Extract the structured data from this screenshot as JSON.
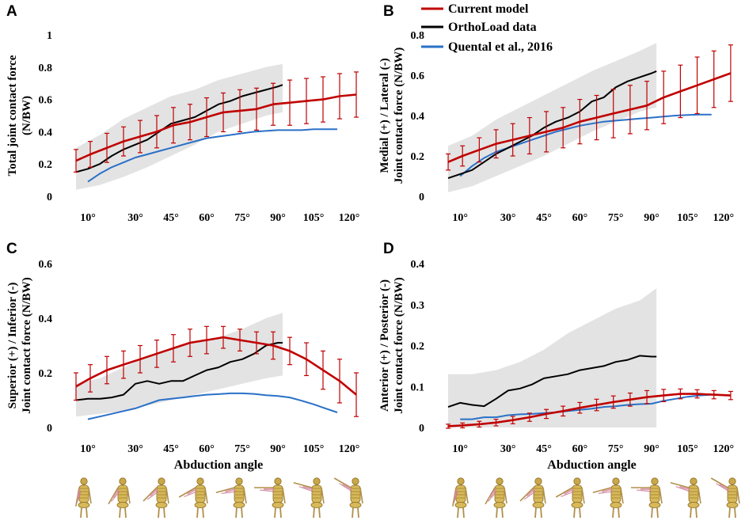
{
  "colors": {
    "current": "#c00000",
    "ortho": "#000000",
    "quental": "#2a70c8",
    "band": "#e3e3e3"
  },
  "legend": {
    "items": [
      {
        "key": "current",
        "label": "Current model"
      },
      {
        "key": "ortho",
        "label": "OrthoLoad data"
      },
      {
        "key": "quental",
        "label": "Quental et al., 2016"
      }
    ]
  },
  "figure_icon": "shoulder-abduction-skeleton-icon",
  "chart_data": [
    {
      "panel": "A",
      "type": "line",
      "ylabel_lines": [
        "Total joint contact force",
        "(N/BW)"
      ],
      "xlabel": "",
      "ylim": [
        0,
        1
      ],
      "yticks": [
        0,
        0.2,
        0.4,
        0.6,
        0.8,
        1
      ],
      "ytick_labels": [
        "0",
        "0.2",
        "0.4",
        "0.6",
        "0.8",
        "1"
      ],
      "xlim": [
        3,
        127
      ],
      "xticks": [
        10,
        30,
        45,
        60,
        75,
        90,
        105,
        120
      ],
      "xtick_labels": [
        "10°",
        "30°",
        "45°",
        "60°",
        "75°",
        "90°",
        "105°",
        "120°"
      ],
      "band": {
        "x": [
          5,
          15,
          25,
          35,
          45,
          55,
          65,
          75,
          85,
          92
        ],
        "lower": [
          0.04,
          0.07,
          0.12,
          0.18,
          0.25,
          0.32,
          0.4,
          0.45,
          0.5,
          0.52
        ],
        "upper": [
          0.3,
          0.38,
          0.48,
          0.55,
          0.62,
          0.66,
          0.72,
          0.76,
          0.8,
          0.82
        ]
      },
      "series": [
        {
          "name": "Current model",
          "key": "current",
          "x": [
            5,
            11,
            18,
            25,
            32,
            39,
            46,
            53,
            60,
            67,
            74,
            81,
            88,
            95,
            102,
            109,
            116,
            123
          ],
          "y": [
            0.22,
            0.26,
            0.3,
            0.34,
            0.37,
            0.4,
            0.44,
            0.46,
            0.49,
            0.52,
            0.53,
            0.54,
            0.57,
            0.58,
            0.59,
            0.6,
            0.62,
            0.63
          ],
          "err": [
            0.07,
            0.08,
            0.09,
            0.09,
            0.1,
            0.1,
            0.11,
            0.11,
            0.12,
            0.12,
            0.13,
            0.13,
            0.13,
            0.14,
            0.14,
            0.14,
            0.14,
            0.14
          ]
        },
        {
          "name": "OrthoLoad data",
          "key": "ortho",
          "x": [
            5,
            10,
            15,
            20,
            25,
            30,
            35,
            40,
            45,
            50,
            55,
            60,
            65,
            70,
            75,
            80,
            85,
            90,
            92
          ],
          "y": [
            0.15,
            0.17,
            0.2,
            0.25,
            0.29,
            0.32,
            0.35,
            0.4,
            0.45,
            0.47,
            0.49,
            0.53,
            0.57,
            0.59,
            0.62,
            0.64,
            0.66,
            0.68,
            0.69
          ]
        },
        {
          "name": "Quental et al., 2016",
          "key": "quental",
          "x": [
            10,
            15,
            20,
            25,
            30,
            35,
            40,
            45,
            50,
            55,
            60,
            65,
            70,
            75,
            80,
            85,
            90,
            95,
            100,
            105,
            110,
            115
          ],
          "y": [
            0.09,
            0.14,
            0.18,
            0.21,
            0.24,
            0.26,
            0.28,
            0.3,
            0.32,
            0.34,
            0.36,
            0.37,
            0.38,
            0.39,
            0.4,
            0.405,
            0.41,
            0.41,
            0.41,
            0.415,
            0.415,
            0.415
          ]
        }
      ]
    },
    {
      "panel": "B",
      "type": "line",
      "ylabel_lines": [
        "Medial (+) / Lateral (-)",
        "Joint contact force (N/BW)"
      ],
      "xlabel": "",
      "ylim": [
        0,
        0.8
      ],
      "yticks": [
        0,
        0.2,
        0.4,
        0.6,
        0.8
      ],
      "ytick_labels": [
        "0",
        "0.2",
        "0.4",
        "0.6",
        "0.8"
      ],
      "xlim": [
        3,
        127
      ],
      "xticks": [
        10,
        30,
        45,
        60,
        75,
        90,
        105,
        120
      ],
      "xtick_labels": [
        "10°",
        "30°",
        "45°",
        "60°",
        "75°",
        "90°",
        "105°",
        "120°"
      ],
      "band": {
        "x": [
          5,
          15,
          25,
          35,
          45,
          55,
          65,
          75,
          85,
          92
        ],
        "lower": [
          0.02,
          0.05,
          0.1,
          0.15,
          0.2,
          0.26,
          0.32,
          0.37,
          0.42,
          0.44
        ],
        "upper": [
          0.25,
          0.3,
          0.38,
          0.44,
          0.5,
          0.56,
          0.62,
          0.67,
          0.72,
          0.76
        ]
      },
      "series": [
        {
          "name": "Current model",
          "key": "current",
          "x": [
            5,
            11,
            18,
            25,
            32,
            39,
            46,
            53,
            60,
            67,
            74,
            81,
            88,
            95,
            102,
            109,
            116,
            123
          ],
          "y": [
            0.17,
            0.2,
            0.23,
            0.26,
            0.28,
            0.3,
            0.32,
            0.34,
            0.37,
            0.39,
            0.41,
            0.43,
            0.45,
            0.49,
            0.52,
            0.55,
            0.58,
            0.61
          ],
          "err": [
            0.04,
            0.05,
            0.06,
            0.07,
            0.08,
            0.09,
            0.1,
            0.1,
            0.11,
            0.11,
            0.12,
            0.12,
            0.12,
            0.13,
            0.13,
            0.14,
            0.14,
            0.14
          ]
        },
        {
          "name": "OrthoLoad data",
          "key": "ortho",
          "x": [
            5,
            10,
            15,
            20,
            25,
            30,
            35,
            40,
            45,
            50,
            55,
            60,
            65,
            70,
            75,
            80,
            85,
            90,
            92
          ],
          "y": [
            0.09,
            0.11,
            0.13,
            0.17,
            0.21,
            0.24,
            0.27,
            0.3,
            0.34,
            0.37,
            0.39,
            0.42,
            0.47,
            0.49,
            0.54,
            0.57,
            0.59,
            0.61,
            0.62
          ]
        },
        {
          "name": "Quental et al., 2016",
          "key": "quental",
          "x": [
            10,
            15,
            20,
            25,
            30,
            35,
            40,
            45,
            50,
            55,
            60,
            65,
            70,
            75,
            80,
            85,
            90,
            95,
            100,
            105,
            110,
            115
          ],
          "y": [
            0.1,
            0.15,
            0.19,
            0.22,
            0.24,
            0.26,
            0.28,
            0.3,
            0.32,
            0.335,
            0.35,
            0.36,
            0.37,
            0.375,
            0.38,
            0.385,
            0.39,
            0.395,
            0.4,
            0.403,
            0.405,
            0.405
          ]
        }
      ]
    },
    {
      "panel": "C",
      "type": "line",
      "ylabel_lines": [
        "Superior (+) / Inferior (-)",
        "Joint contact force (N/BW)"
      ],
      "xlabel": "Abduction angle",
      "ylim": [
        0,
        0.6
      ],
      "yticks": [
        0,
        0.2,
        0.4,
        0.6
      ],
      "ytick_labels": [
        "0",
        "0.2",
        "0.4",
        "0.6"
      ],
      "xlim": [
        3,
        127
      ],
      "xticks": [
        10,
        30,
        45,
        60,
        75,
        90,
        105,
        120
      ],
      "xtick_labels": [
        "10°",
        "30°",
        "45°",
        "60°",
        "75°",
        "90°",
        "105°",
        "120°"
      ],
      "band": {
        "x": [
          5,
          15,
          25,
          35,
          45,
          55,
          65,
          75,
          85,
          92
        ],
        "lower": [
          0.04,
          0.05,
          0.06,
          0.08,
          0.1,
          0.12,
          0.14,
          0.16,
          0.18,
          0.19
        ],
        "upper": [
          0.16,
          0.18,
          0.22,
          0.26,
          0.29,
          0.31,
          0.33,
          0.36,
          0.4,
          0.42
        ]
      },
      "series": [
        {
          "name": "Current model",
          "key": "current",
          "x": [
            5,
            11,
            18,
            25,
            32,
            39,
            46,
            53,
            60,
            67,
            74,
            81,
            88,
            95,
            102,
            109,
            116,
            123
          ],
          "y": [
            0.15,
            0.18,
            0.21,
            0.23,
            0.25,
            0.27,
            0.29,
            0.31,
            0.32,
            0.33,
            0.32,
            0.31,
            0.3,
            0.28,
            0.25,
            0.21,
            0.17,
            0.12
          ],
          "err": [
            0.05,
            0.05,
            0.05,
            0.05,
            0.05,
            0.05,
            0.05,
            0.05,
            0.05,
            0.04,
            0.04,
            0.04,
            0.05,
            0.05,
            0.06,
            0.07,
            0.08,
            0.08
          ]
        },
        {
          "name": "OrthoLoad data",
          "key": "ortho",
          "x": [
            5,
            10,
            15,
            20,
            25,
            30,
            35,
            40,
            45,
            50,
            55,
            60,
            65,
            70,
            75,
            80,
            85,
            90,
            92
          ],
          "y": [
            0.1,
            0.105,
            0.105,
            0.11,
            0.12,
            0.16,
            0.17,
            0.16,
            0.17,
            0.17,
            0.19,
            0.21,
            0.22,
            0.24,
            0.25,
            0.27,
            0.3,
            0.31,
            0.31
          ]
        },
        {
          "name": "Quental et al., 2016",
          "key": "quental",
          "x": [
            10,
            15,
            20,
            25,
            30,
            35,
            40,
            45,
            50,
            55,
            60,
            65,
            70,
            75,
            80,
            85,
            90,
            95,
            100,
            105,
            110,
            115
          ],
          "y": [
            0.03,
            0.04,
            0.05,
            0.06,
            0.07,
            0.085,
            0.1,
            0.105,
            0.11,
            0.115,
            0.12,
            0.122,
            0.125,
            0.125,
            0.123,
            0.118,
            0.115,
            0.11,
            0.098,
            0.085,
            0.07,
            0.055
          ]
        }
      ]
    },
    {
      "panel": "D",
      "type": "line",
      "ylabel_lines": [
        "Anterior (+) / Posterior (-)",
        "Joint contact force (N/BW)"
      ],
      "xlabel": "Abduction angle",
      "ylim": [
        0,
        0.4
      ],
      "yticks": [
        0,
        0.1,
        0.2,
        0.3,
        0.4
      ],
      "ytick_labels": [
        "0",
        "0.1",
        "0.2",
        "0.3",
        "0.4"
      ],
      "xlim": [
        3,
        127
      ],
      "xticks": [
        10,
        30,
        45,
        60,
        75,
        90,
        105,
        120
      ],
      "xtick_labels": [
        "10°",
        "30°",
        "45°",
        "60°",
        "75°",
        "90°",
        "105°",
        "120°"
      ],
      "band": {
        "x": [
          5,
          15,
          25,
          35,
          45,
          55,
          65,
          75,
          85,
          92
        ],
        "lower": [
          0,
          0,
          0,
          0,
          0,
          0,
          0,
          0,
          0,
          0
        ],
        "upper": [
          0.13,
          0.13,
          0.14,
          0.16,
          0.19,
          0.23,
          0.26,
          0.29,
          0.31,
          0.34
        ]
      },
      "series": [
        {
          "name": "Current model",
          "key": "current",
          "x": [
            5,
            11,
            18,
            25,
            32,
            39,
            46,
            53,
            60,
            67,
            74,
            81,
            88,
            95,
            102,
            109,
            116,
            123
          ],
          "y": [
            0.003,
            0.005,
            0.008,
            0.012,
            0.018,
            0.025,
            0.033,
            0.04,
            0.048,
            0.055,
            0.062,
            0.068,
            0.074,
            0.078,
            0.082,
            0.082,
            0.08,
            0.078
          ],
          "err": [
            0.005,
            0.006,
            0.007,
            0.008,
            0.009,
            0.01,
            0.011,
            0.012,
            0.013,
            0.014,
            0.015,
            0.016,
            0.016,
            0.015,
            0.012,
            0.01,
            0.01,
            0.01
          ]
        },
        {
          "name": "OrthoLoad data",
          "key": "ortho",
          "x": [
            5,
            10,
            15,
            20,
            25,
            30,
            35,
            40,
            45,
            50,
            55,
            60,
            65,
            70,
            75,
            80,
            85,
            90,
            92
          ],
          "y": [
            0.05,
            0.06,
            0.055,
            0.052,
            0.07,
            0.09,
            0.095,
            0.105,
            0.12,
            0.125,
            0.13,
            0.14,
            0.145,
            0.15,
            0.16,
            0.165,
            0.175,
            0.173,
            0.173
          ]
        },
        {
          "name": "Quental et al., 2016",
          "key": "quental",
          "x": [
            10,
            15,
            20,
            25,
            30,
            35,
            40,
            45,
            50,
            55,
            60,
            65,
            70,
            75,
            80,
            85,
            90,
            95,
            100,
            105,
            110,
            115
          ],
          "y": [
            0.02,
            0.02,
            0.025,
            0.025,
            0.03,
            0.032,
            0.033,
            0.035,
            0.037,
            0.04,
            0.043,
            0.046,
            0.05,
            0.052,
            0.055,
            0.057,
            0.058,
            0.065,
            0.07,
            0.075,
            0.078,
            0.08
          ]
        }
      ]
    }
  ]
}
